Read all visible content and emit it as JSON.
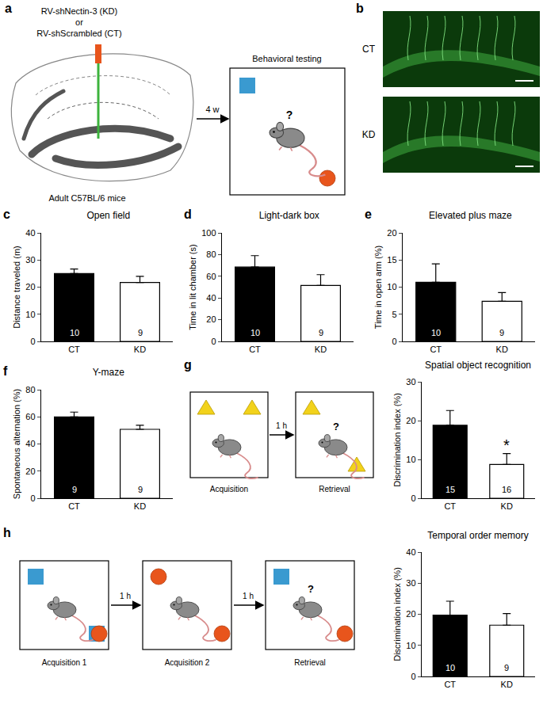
{
  "panel_a": {
    "label": "a",
    "virus_kd": "RV-shNectin-3 (KD)",
    "or": "or",
    "virus_ct": "RV-shScrambled (CT)",
    "mice": "Adult C57BL/6 mice",
    "interval": "4 w",
    "test": "Behavioral testing",
    "question": "?"
  },
  "panel_b": {
    "label": "b",
    "images": [
      "CT",
      "KD"
    ]
  },
  "panel_g": {
    "steps": [
      "Acquisition",
      "Retrieval"
    ],
    "interval": "1 h",
    "question": "?"
  },
  "panel_h": {
    "steps": [
      "Acquisition 1",
      "Acquisition 2",
      "Retrieval"
    ],
    "intervals": [
      "1 h",
      "1 h"
    ],
    "question": "?"
  },
  "chart_data": [
    {
      "panel": "c",
      "type": "bar",
      "title": "Open field",
      "ylabel": "Distance traveled (m)",
      "categories": [
        "CT",
        "KD"
      ],
      "values": [
        25,
        21.7
      ],
      "errors": [
        1.7,
        2.3
      ],
      "n": [
        10,
        9
      ],
      "colors": [
        "#000000",
        "#ffffff"
      ],
      "ylim": [
        0,
        40
      ],
      "yticks": [
        0,
        10,
        20,
        30,
        40
      ]
    },
    {
      "panel": "d",
      "type": "bar",
      "title": "Light-dark box",
      "ylabel": "Time in lit chamber (s)",
      "categories": [
        "CT",
        "KD"
      ],
      "values": [
        68.5,
        51.5
      ],
      "errors": [
        10.5,
        10
      ],
      "n": [
        10,
        9
      ],
      "colors": [
        "#000000",
        "#ffffff"
      ],
      "ylim": [
        0,
        100
      ],
      "yticks": [
        0,
        20,
        40,
        60,
        80,
        100
      ]
    },
    {
      "panel": "e",
      "type": "bar",
      "title": "Elevated plus maze",
      "ylabel": "Time in open arm (%)",
      "categories": [
        "CT",
        "KD"
      ],
      "values": [
        10.9,
        7.4
      ],
      "errors": [
        3.4,
        1.6
      ],
      "n": [
        10,
        9
      ],
      "colors": [
        "#000000",
        "#ffffff"
      ],
      "ylim": [
        0,
        20
      ],
      "yticks": [
        0,
        5,
        10,
        15,
        20
      ]
    },
    {
      "panel": "f",
      "type": "bar",
      "title": "Y-maze",
      "ylabel": "Spontaneous alternation (%)",
      "categories": [
        "CT",
        "KD"
      ],
      "values": [
        60,
        50.8
      ],
      "errors": [
        3.5,
        3
      ],
      "n": [
        9,
        9
      ],
      "colors": [
        "#000000",
        "#ffffff"
      ],
      "ylim": [
        0,
        80
      ],
      "yticks": [
        0,
        20,
        40,
        60,
        80
      ]
    },
    {
      "panel": "g",
      "type": "bar",
      "title": "Spatial object recognition",
      "ylabel": "Discrimination index (%)",
      "categories": [
        "CT",
        "KD"
      ],
      "values": [
        18.8,
        8.7
      ],
      "errors": [
        3.8,
        2.8
      ],
      "n": [
        15,
        16
      ],
      "significance": [
        null,
        "*"
      ],
      "colors": [
        "#000000",
        "#ffffff"
      ],
      "ylim": [
        0,
        30
      ],
      "yticks": [
        0,
        10,
        20,
        30
      ]
    },
    {
      "panel": "h",
      "type": "bar",
      "title": "Temporal order memory",
      "ylabel": "Discrimination index (%)",
      "categories": [
        "CT",
        "KD"
      ],
      "values": [
        19.7,
        16.5
      ],
      "errors": [
        4.5,
        3.7
      ],
      "n": [
        10,
        9
      ],
      "colors": [
        "#000000",
        "#ffffff"
      ],
      "ylim": [
        0,
        40
      ],
      "yticks": [
        0,
        10,
        20,
        30,
        40
      ]
    }
  ]
}
